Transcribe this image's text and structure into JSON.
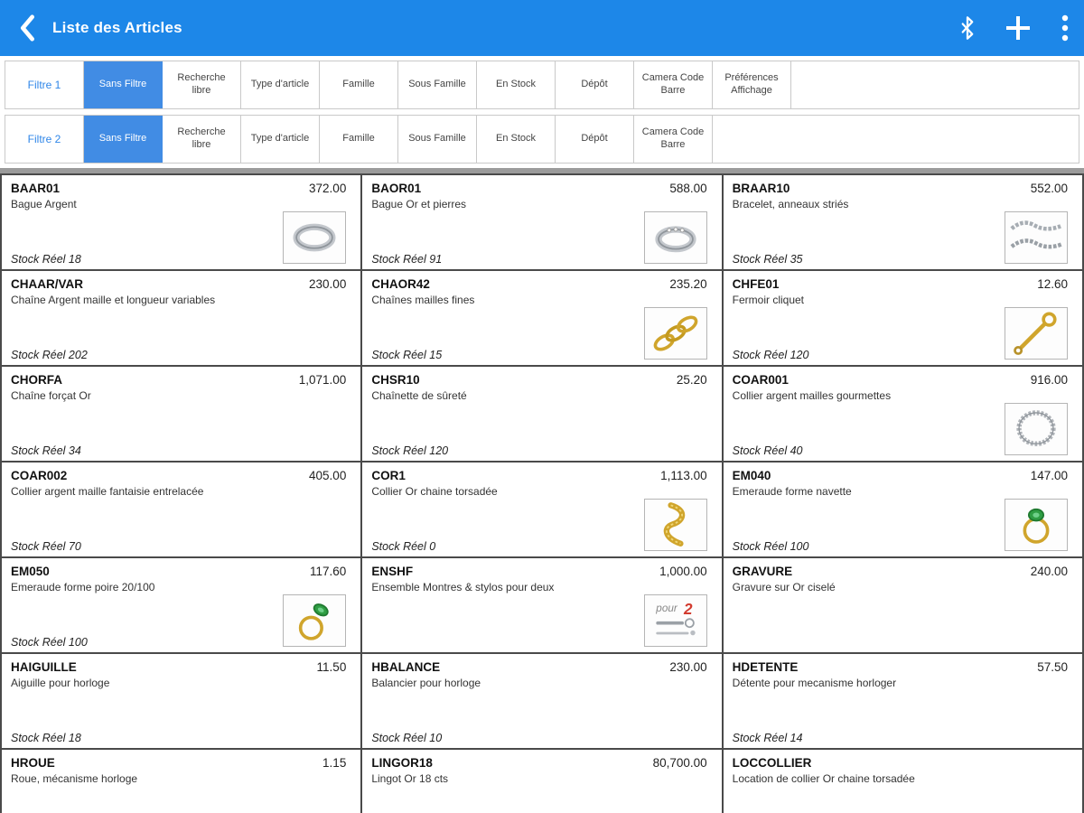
{
  "app_bar": {
    "title": "Liste des Articles"
  },
  "filters": {
    "rows": [
      {
        "label": "Filtre 1",
        "active": "Sans Filtre",
        "buttons": [
          "Recherche\nlibre",
          "Type d'article",
          "Famille",
          "Sous Famille",
          "En Stock",
          "Dépôt",
          "Camera Code\nBarre",
          "Préférences\nAffichage"
        ]
      },
      {
        "label": "Filtre 2",
        "active": "Sans Filtre",
        "buttons": [
          "Recherche\nlibre",
          "Type d'article",
          "Famille",
          "Sous Famille",
          "En Stock",
          "Dépôt",
          "Camera Code\nBarre"
        ]
      }
    ]
  },
  "articles": [
    {
      "code": "BAAR01",
      "price": "372.00",
      "desc": "Bague Argent",
      "stock": "Stock Réel 18",
      "image": "ring-silver"
    },
    {
      "code": "BAOR01",
      "price": "588.00",
      "desc": "Bague Or et pierres",
      "stock": "Stock Réel 91",
      "image": "ring-stones"
    },
    {
      "code": "BRAAR10",
      "price": "552.00",
      "desc": "Bracelet, anneaux striés",
      "stock": "Stock Réel 35",
      "image": "bracelet-silver"
    },
    {
      "code": "CHAAR/VAR",
      "price": "230.00",
      "desc": "Chaîne Argent maille et longueur variables",
      "stock": "Stock Réel 202",
      "image": null
    },
    {
      "code": "CHAOR42",
      "price": "235.20",
      "desc": "Chaînes mailles fines",
      "stock": "Stock Réel 15",
      "image": "chain-gold"
    },
    {
      "code": "CHFE01",
      "price": "12.60",
      "desc": "Fermoir cliquet",
      "stock": "Stock Réel 120",
      "image": "clasp-gold"
    },
    {
      "code": "CHORFA",
      "price": "1,071.00",
      "desc": "Chaîne forçat Or",
      "stock": "Stock Réel 34",
      "image": null
    },
    {
      "code": "CHSR10",
      "price": "25.20",
      "desc": "Chaînette de sûreté",
      "stock": "Stock Réel 120",
      "image": null
    },
    {
      "code": "COAR001",
      "price": "916.00",
      "desc": "Collier argent mailles gourmettes",
      "stock": "Stock Réel 40",
      "image": "necklace-silver"
    },
    {
      "code": "COAR002",
      "price": "405.00",
      "desc": "Collier argent maille fantaisie entrelacée",
      "stock": "Stock Réel 70",
      "image": null
    },
    {
      "code": "COR1",
      "price": "1,113.00",
      "desc": "Collier Or chaine torsadée",
      "stock": "Stock Réel 0",
      "image": "necklace-gold"
    },
    {
      "code": "EM040",
      "price": "147.00",
      "desc": "Emeraude forme navette",
      "stock": "Stock Réel 100",
      "image": "ring-emerald"
    },
    {
      "code": "EM050",
      "price": "117.60",
      "desc": "Emeraude forme poire 20/100",
      "stock": "Stock Réel 100",
      "image": "ring-emerald-2"
    },
    {
      "code": "ENSHF",
      "price": "1,000.00",
      "desc": "Ensemble Montres & stylos pour deux",
      "stock": "",
      "image": "set-pour2"
    },
    {
      "code": "GRAVURE",
      "price": "240.00",
      "desc": "Gravure sur Or ciselé",
      "stock": "",
      "image": null
    },
    {
      "code": "HAIGUILLE",
      "price": "11.50",
      "desc": "Aiguille pour horloge",
      "stock": "Stock Réel 18",
      "image": null
    },
    {
      "code": "HBALANCE",
      "price": "230.00",
      "desc": "Balancier pour horloge",
      "stock": "Stock Réel 10",
      "image": null
    },
    {
      "code": "HDETENTE",
      "price": "57.50",
      "desc": "Détente pour mecanisme horloger",
      "stock": "Stock Réel 14",
      "image": null
    },
    {
      "code": "HROUE",
      "price": "1.15",
      "desc": "Roue, mécanisme horloge",
      "stock": "",
      "image": null
    },
    {
      "code": "LINGOR18",
      "price": "80,700.00",
      "desc": "Lingot Or 18 cts",
      "stock": "",
      "image": null
    },
    {
      "code": "LOCCOLLIER",
      "price": "",
      "desc": "Location de collier Or chaine torsadée",
      "stock": "",
      "image": null
    }
  ],
  "colors": {
    "appbar": "#1d87e8",
    "active_filter": "#418ce4",
    "filter_label": "#2f86e8",
    "gold": "#d0a52c",
    "silver": "#a7adb3",
    "emerald": "#2f9e44",
    "pour2_red": "#d23b2f"
  }
}
